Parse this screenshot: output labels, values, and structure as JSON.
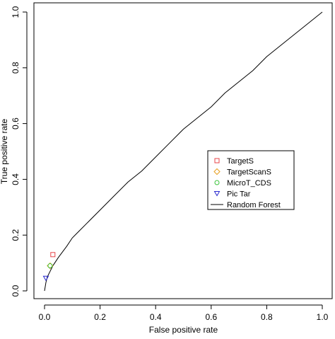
{
  "chart_data": {
    "type": "line",
    "title": "",
    "xlabel": "False positive rate",
    "ylabel": "True positive rate",
    "xlim": [
      0,
      1
    ],
    "ylim": [
      0,
      1
    ],
    "xticks": [
      "0.0",
      "0.2",
      "0.4",
      "0.6",
      "0.8",
      "1.0"
    ],
    "yticks": [
      "0.0",
      "0.2",
      "0.4",
      "0.6",
      "0.8",
      "1.0"
    ],
    "grid": false,
    "legend_position": "center-right",
    "series": [
      {
        "name": "Random Forest",
        "type": "line",
        "color": "#000000",
        "x": [
          0.0,
          0.005,
          0.01,
          0.02,
          0.03,
          0.05,
          0.08,
          0.1,
          0.12,
          0.15,
          0.2,
          0.25,
          0.3,
          0.35,
          0.4,
          0.45,
          0.5,
          0.55,
          0.6,
          0.65,
          0.7,
          0.75,
          0.8,
          0.85,
          0.9,
          0.95,
          1.0
        ],
        "y": [
          0.0,
          0.03,
          0.05,
          0.07,
          0.09,
          0.12,
          0.16,
          0.19,
          0.21,
          0.24,
          0.29,
          0.34,
          0.39,
          0.43,
          0.48,
          0.53,
          0.58,
          0.62,
          0.66,
          0.71,
          0.75,
          0.79,
          0.84,
          0.88,
          0.92,
          0.96,
          1.0
        ]
      },
      {
        "name": "TargetS",
        "type": "point",
        "marker": "square",
        "color": "#e8454a",
        "x": [
          0.03
        ],
        "y": [
          0.13
        ]
      },
      {
        "name": "TargetScanS",
        "type": "point",
        "marker": "diamond",
        "color": "#e8a020",
        "x": [
          0.02
        ],
        "y": [
          0.09
        ]
      },
      {
        "name": "MicroT_CDS",
        "type": "point",
        "marker": "circle",
        "color": "#3cc43c",
        "x": [
          0.02
        ],
        "y": [
          0.09
        ]
      },
      {
        "name": "Pic Tar",
        "type": "point",
        "marker": "triangle-down",
        "color": "#2a2ad0",
        "x": [
          0.005
        ],
        "y": [
          0.045
        ]
      }
    ],
    "legend_order": [
      "TargetS",
      "TargetScanS",
      "MicroT_CDS",
      "Pic Tar",
      "Random Forest"
    ]
  }
}
